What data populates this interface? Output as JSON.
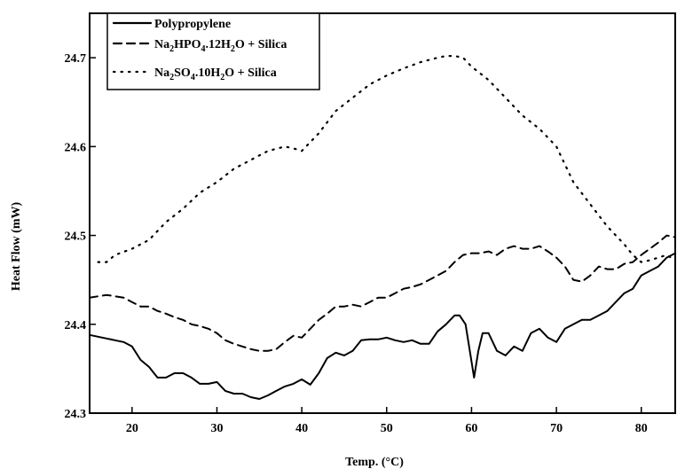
{
  "chart_data": {
    "type": "line",
    "xlabel": "Temp. (°C)",
    "ylabel": "Heat Flow (mW)",
    "xlim": [
      15,
      84
    ],
    "ylim": [
      24.3,
      24.75
    ],
    "xticks": [
      20,
      30,
      40,
      50,
      60,
      70,
      80
    ],
    "yticks": [
      24.3,
      24.4,
      24.5,
      24.6,
      24.7
    ],
    "grid": false,
    "legend_position": "top-left",
    "series": [
      {
        "name": "Polypropylene",
        "legend_parts": [
          {
            "t": "Polypropylene"
          }
        ],
        "style": "solid",
        "x": [
          15,
          17,
          19,
          20,
          21,
          22,
          23,
          24,
          25,
          26,
          27,
          28,
          29,
          30,
          31,
          32,
          33,
          34,
          35,
          36,
          37,
          38,
          39,
          40,
          41,
          42,
          43,
          44,
          45,
          46,
          47,
          48,
          49,
          50,
          51,
          52,
          53,
          54,
          55,
          56,
          57,
          58,
          58.6,
          59.3,
          59.8,
          60.3,
          60.8,
          61.3,
          62,
          63,
          64,
          65,
          66,
          67,
          68,
          69,
          70,
          71,
          72,
          73,
          74,
          75,
          76,
          77,
          78,
          79,
          80,
          81,
          82,
          83,
          84
        ],
        "y": [
          24.388,
          24.384,
          24.38,
          24.375,
          24.36,
          24.352,
          24.34,
          24.34,
          24.345,
          24.345,
          24.34,
          24.333,
          24.333,
          24.335,
          24.325,
          24.322,
          24.322,
          24.318,
          24.316,
          24.32,
          24.325,
          24.33,
          24.333,
          24.338,
          24.332,
          24.345,
          24.362,
          24.368,
          24.365,
          24.37,
          24.382,
          24.383,
          24.383,
          24.385,
          24.382,
          24.38,
          24.382,
          24.378,
          24.378,
          24.392,
          24.4,
          24.41,
          24.41,
          24.4,
          24.37,
          24.34,
          24.37,
          24.39,
          24.39,
          24.37,
          24.365,
          24.375,
          24.37,
          24.39,
          24.395,
          24.385,
          24.38,
          24.395,
          24.4,
          24.405,
          24.405,
          24.41,
          24.415,
          24.425,
          24.435,
          24.44,
          24.455,
          24.46,
          24.465,
          24.475,
          24.48
        ]
      },
      {
        "name": "Na₂HPO₄.12H₂O + Silica",
        "legend_parts": [
          {
            "t": "Na"
          },
          {
            "t": "2",
            "sub": true
          },
          {
            "t": "HPO"
          },
          {
            "t": "4",
            "sub": true
          },
          {
            "t": ".12H"
          },
          {
            "t": "2",
            "sub": true
          },
          {
            "t": "O + Silica"
          }
        ],
        "style": "dashed",
        "x": [
          15,
          17,
          19,
          20,
          21,
          22,
          23,
          24,
          25,
          26,
          27,
          28,
          29,
          30,
          31,
          32,
          33,
          34,
          35,
          36,
          37,
          38,
          39,
          40,
          41,
          42,
          43,
          44,
          45,
          46,
          47,
          48,
          49,
          50,
          51,
          52,
          53,
          54,
          55,
          56,
          57,
          58,
          59,
          60,
          61,
          62,
          63,
          64,
          65,
          66,
          67,
          68,
          69,
          70,
          71,
          72,
          73,
          74,
          75,
          76,
          77,
          78,
          79,
          80,
          81,
          82,
          83,
          84
        ],
        "y": [
          24.43,
          24.433,
          24.43,
          24.425,
          24.42,
          24.42,
          24.415,
          24.412,
          24.408,
          24.405,
          24.4,
          24.398,
          24.395,
          24.39,
          24.382,
          24.378,
          24.375,
          24.372,
          24.37,
          24.37,
          24.372,
          24.38,
          24.387,
          24.385,
          24.395,
          24.405,
          24.412,
          24.42,
          24.42,
          24.422,
          24.42,
          24.425,
          24.43,
          24.43,
          24.435,
          24.44,
          24.442,
          24.445,
          24.45,
          24.455,
          24.46,
          24.47,
          24.478,
          24.48,
          24.48,
          24.482,
          24.478,
          24.485,
          24.488,
          24.485,
          24.485,
          24.488,
          24.482,
          24.475,
          24.465,
          24.45,
          24.448,
          24.455,
          24.465,
          24.462,
          24.462,
          24.468,
          24.47,
          24.478,
          24.485,
          24.492,
          24.5,
          24.498
        ]
      },
      {
        "name": "Na₂SO₄.10H₂O + Silica",
        "legend_parts": [
          {
            "t": "Na"
          },
          {
            "t": "2",
            "sub": true
          },
          {
            "t": "SO"
          },
          {
            "t": "4",
            "sub": true
          },
          {
            "t": ".10H"
          },
          {
            "t": "2",
            "sub": true
          },
          {
            "t": "O + Silica"
          }
        ],
        "style": "dotted",
        "x": [
          16,
          17,
          18,
          20,
          22,
          24,
          26,
          28,
          30,
          32,
          34,
          36,
          38,
          39,
          40,
          42,
          44,
          46,
          48,
          50,
          52,
          54,
          56,
          57,
          58,
          59,
          60,
          62,
          64,
          66,
          68,
          69,
          70,
          72,
          74,
          76,
          78,
          79,
          80,
          81,
          82,
          83,
          84
        ],
        "y": [
          24.47,
          24.47,
          24.478,
          24.485,
          24.495,
          24.515,
          24.53,
          24.548,
          24.56,
          24.575,
          24.585,
          24.595,
          24.6,
          24.598,
          24.595,
          24.615,
          24.64,
          24.655,
          24.67,
          24.68,
          24.688,
          24.695,
          24.7,
          24.702,
          24.702,
          24.7,
          24.69,
          24.675,
          24.655,
          24.635,
          24.62,
          24.61,
          24.6,
          24.56,
          24.535,
          24.51,
          24.49,
          24.478,
          24.47,
          24.472,
          24.475,
          24.478,
          24.472
        ]
      }
    ]
  }
}
